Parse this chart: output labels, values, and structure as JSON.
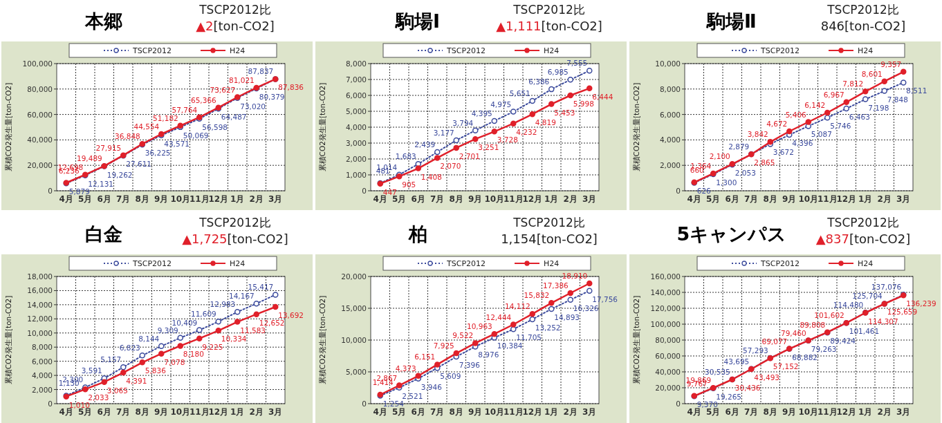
{
  "chart_data": [
    {
      "type": "line",
      "title": "本郷",
      "annotations": [
        "TSCP2012比",
        "▲2[ton-CO2]"
      ],
      "ylabel": "累積CO2発生量[ton-CO2]",
      "categories": [
        "4月",
        "5月",
        "6月",
        "7月",
        "8月",
        "9月",
        "10月",
        "11月",
        "12月",
        "1月",
        "2月",
        "3月"
      ],
      "ylim": [
        0,
        100000
      ],
      "yticks": [
        {
          "value": 0,
          "label": "0"
        },
        {
          "value": 20000,
          "label": "20,000"
        },
        {
          "value": 40000,
          "label": "40,000"
        },
        {
          "value": 60000,
          "label": "60,000"
        },
        {
          "value": 80000,
          "label": "80,000"
        },
        {
          "value": 100000,
          "label": "100,000"
        }
      ],
      "grid": true,
      "legend": "top",
      "series": [
        {
          "name": "TSCP2012",
          "color": "#3b4a9c",
          "marker": "circle",
          "line_style": "dotted",
          "values": [
            5879,
            12131,
            19262,
            27611,
            36225,
            43571,
            50069,
            56598,
            64487,
            73020,
            80379,
            87837
          ],
          "value_labels": [
            "5,879",
            "12,131",
            "19,262",
            "27,611",
            "36,225",
            "43,571",
            "50,069",
            "56,598",
            "64,487",
            "73,020",
            "80,379",
            "87,837"
          ]
        },
        {
          "name": "H24",
          "color": "#e0202a",
          "marker": "circle",
          "line_style": "solid",
          "values": [
            6236,
            12698,
            19489,
            27915,
            36848,
            44554,
            51182,
            57764,
            65366,
            73627,
            81021,
            87836
          ],
          "value_labels": [
            "6,236",
            "12,698",
            "19,489",
            "27,915",
            "36,848",
            "44,554",
            "51,182",
            "57,764",
            "65,366",
            "73,627",
            "81,021",
            "87,836"
          ]
        }
      ]
    },
    {
      "type": "line",
      "title": "駒場Ⅰ",
      "annotations": [
        "TSCP2012比",
        "▲1,111[ton-CO2]"
      ],
      "ylabel": "累積CO2発生量[ton-CO2]",
      "categories": [
        "4月",
        "5月",
        "6月",
        "7月",
        "8月",
        "9月",
        "10月",
        "11月",
        "12月",
        "1月",
        "2月",
        "3月"
      ],
      "ylim": [
        0,
        8000
      ],
      "yticks": [
        {
          "value": 0,
          "label": "0"
        },
        {
          "value": 1000,
          "label": "1,000"
        },
        {
          "value": 2000,
          "label": "2,000"
        },
        {
          "value": 3000,
          "label": "3,000"
        },
        {
          "value": 4000,
          "label": "4,000"
        },
        {
          "value": 5000,
          "label": "5,000"
        },
        {
          "value": 6000,
          "label": "6,000"
        },
        {
          "value": 7000,
          "label": "7,000"
        },
        {
          "value": 8000,
          "label": "8,000"
        }
      ],
      "grid": true,
      "legend": "top",
      "series": [
        {
          "name": "TSCP2012",
          "color": "#3b4a9c",
          "marker": "circle",
          "line_style": "dotted",
          "values": [
            481,
            1014,
            1683,
            2439,
            3177,
            3794,
            4395,
            4975,
            5651,
            6386,
            6985,
            7555
          ],
          "value_labels": [
            "481",
            "1,014",
            "1,683",
            "2,439",
            "3,177",
            "3,794",
            "4,395",
            "4,975",
            "5,651",
            "6,386",
            "6,985",
            "7,555"
          ]
        },
        {
          "name": "H24",
          "color": "#e0202a",
          "marker": "circle",
          "line_style": "solid",
          "values": [
            447,
            905,
            1408,
            2070,
            2701,
            3251,
            3728,
            4232,
            4819,
            5453,
            5998,
            6444
          ],
          "value_labels": [
            "447",
            "905",
            "1,408",
            "2,070",
            "2,701",
            "3,251",
            "3,728",
            "4,232",
            "4,819",
            "5,453",
            "5,998",
            "6,444"
          ]
        }
      ]
    },
    {
      "type": "line",
      "title": "駒場Ⅱ",
      "annotations": [
        "TSCP2012比",
        "846[ton-CO2]"
      ],
      "ylabel": "累積CO2発生量[ton-CO2]",
      "categories": [
        "4月",
        "5月",
        "6月",
        "7月",
        "8月",
        "9月",
        "10月",
        "11月",
        "12月",
        "1月",
        "2月",
        "3月"
      ],
      "ylim": [
        0,
        10000
      ],
      "yticks": [
        {
          "value": 0,
          "label": "0"
        },
        {
          "value": 2000,
          "label": "2,000"
        },
        {
          "value": 4000,
          "label": "4,000"
        },
        {
          "value": 6000,
          "label": "6,000"
        },
        {
          "value": 8000,
          "label": "8,000"
        },
        {
          "value": 10000,
          "label": "10,000"
        }
      ],
      "grid": true,
      "legend": "top",
      "series": [
        {
          "name": "TSCP2012",
          "color": "#3b4a9c",
          "marker": "circle",
          "line_style": "dotted",
          "values": [
            626,
            1300,
            2053,
            2879,
            3672,
            4396,
            5087,
            5746,
            6463,
            7198,
            7848,
            8511
          ],
          "value_labels": [
            "626",
            "1,300",
            "2,053",
            "2,879",
            "3,672",
            "4,396",
            "5,087",
            "5,746",
            "6,463",
            "7,198",
            "7,848",
            "8,511"
          ]
        },
        {
          "name": "H24",
          "color": "#e0202a",
          "marker": "circle",
          "line_style": "solid",
          "values": [
            660,
            1364,
            2100,
            2865,
            3842,
            4672,
            5406,
            6142,
            6967,
            7812,
            8601,
            9357
          ],
          "value_labels": [
            "660",
            "1,364",
            "2,100",
            "2,865",
            "3,842",
            "4,672",
            "5,406",
            "6,142",
            "6,967",
            "7,812",
            "8,601",
            "9,357"
          ]
        }
      ]
    },
    {
      "type": "line",
      "title": "白金",
      "annotations": [
        "TSCP2012比",
        "▲1,725[ton-CO2]"
      ],
      "ylabel": "累積CO2発生量[ton-CO2]",
      "categories": [
        "4月",
        "5月",
        "6月",
        "7月",
        "8月",
        "9月",
        "10月",
        "11月",
        "12月",
        "1月",
        "2月",
        "3月"
      ],
      "ylim": [
        0,
        18000
      ],
      "yticks": [
        {
          "value": 0,
          "label": "0"
        },
        {
          "value": 2000,
          "label": "2,000"
        },
        {
          "value": 4000,
          "label": "4,000"
        },
        {
          "value": 6000,
          "label": "6,000"
        },
        {
          "value": 8000,
          "label": "8,000"
        },
        {
          "value": 10000,
          "label": "10,000"
        },
        {
          "value": 12000,
          "label": "12,000"
        },
        {
          "value": 14000,
          "label": "14,000"
        },
        {
          "value": 16000,
          "label": "16,000"
        },
        {
          "value": 18000,
          "label": "18,000"
        }
      ],
      "grid": true,
      "legend": "top",
      "series": [
        {
          "name": "TSCP2012",
          "color": "#3b4a9c",
          "marker": "circle",
          "line_style": "dotted",
          "values": [
            1130,
            2300,
            3591,
            5157,
            6823,
            8144,
            9309,
            10409,
            11609,
            12983,
            14167,
            15417
          ],
          "value_labels": [
            "1,130",
            "2,300",
            "3,591",
            "5,157",
            "6,823",
            "8,144",
            "9,309",
            "10,409",
            "11,609",
            "12,983",
            "14,167",
            "15,417"
          ]
        },
        {
          "name": "H24",
          "color": "#e0202a",
          "marker": "circle",
          "line_style": "solid",
          "values": [
            1010,
            2033,
            3065,
            4391,
            5836,
            7078,
            8180,
            9225,
            10334,
            11583,
            12652,
            13692
          ],
          "value_labels": [
            "1,010",
            "2,033",
            "3,065",
            "4,391",
            "5,836",
            "7,078",
            "8,180",
            "9,225",
            "10,334",
            "11,583",
            "12,652",
            "13,692"
          ]
        }
      ]
    },
    {
      "type": "line",
      "title": "柏",
      "annotations": [
        "TSCP2012比",
        "1,154[ton-CO2]"
      ],
      "ylabel": "累積CO2発生量[ton-CO2]",
      "categories": [
        "4月",
        "5月",
        "6月",
        "7月",
        "8月",
        "9月",
        "10月",
        "11月",
        "12月",
        "1月",
        "2月",
        "3月"
      ],
      "ylim": [
        0,
        20000
      ],
      "yticks": [
        {
          "value": 0,
          "label": "0"
        },
        {
          "value": 5000,
          "label": "5,000"
        },
        {
          "value": 10000,
          "label": "10,000"
        },
        {
          "value": 15000,
          "label": "15,000"
        },
        {
          "value": 20000,
          "label": "20,000"
        }
      ],
      "grid": true,
      "legend": "top",
      "series": [
        {
          "name": "TSCP2012",
          "color": "#3b4a9c",
          "marker": "circle",
          "line_style": "dotted",
          "values": [
            1254,
            2521,
            3946,
            5609,
            7396,
            8976,
            10384,
            11705,
            13252,
            14893,
            16326,
            17756
          ],
          "value_labels": [
            "1,254",
            "2,521",
            "3,946",
            "5,609",
            "7,396",
            "8,976",
            "10,384",
            "11,705",
            "13,252",
            "14,893",
            "16,326",
            "17,756"
          ]
        },
        {
          "name": "H24",
          "color": "#e0202a",
          "marker": "circle",
          "line_style": "solid",
          "values": [
            1414,
            2867,
            4373,
            6151,
            7925,
            9522,
            10963,
            12444,
            14112,
            15832,
            17386,
            18910
          ],
          "value_labels": [
            "1,414",
            "2,867",
            "4,373",
            "6,151",
            "7,925",
            "9,522",
            "10,963",
            "12,444",
            "14,112",
            "15,832",
            "17,386",
            "18,910"
          ]
        }
      ]
    },
    {
      "type": "line",
      "title": "5キャンパス",
      "annotations": [
        "TSCP2012比",
        "▲837[ton-CO2]"
      ],
      "ylabel": "累積CO2発生量[ton-CO2]",
      "categories": [
        "4月",
        "5月",
        "6月",
        "7月",
        "8月",
        "9月",
        "10月",
        "11月",
        "12月",
        "1月",
        "2月",
        "3月"
      ],
      "ylim": [
        0,
        160000
      ],
      "yticks": [
        {
          "value": 0,
          "label": "0"
        },
        {
          "value": 20000,
          "label": "20,000"
        },
        {
          "value": 40000,
          "label": "40,000"
        },
        {
          "value": 60000,
          "label": "60,000"
        },
        {
          "value": 80000,
          "label": "80,000"
        },
        {
          "value": 100000,
          "label": "100,000"
        },
        {
          "value": 120000,
          "label": "120,000"
        },
        {
          "value": 140000,
          "label": "140,000"
        },
        {
          "value": 160000,
          "label": "160,000"
        }
      ],
      "grid": true,
      "legend": "top",
      "series": [
        {
          "name": "TSCP2012",
          "color": "#3b4a9c",
          "marker": "circle",
          "line_style": "dotted",
          "values": [
            9370,
            19265,
            30535,
            43695,
            57293,
            68882,
            79263,
            89424,
            101461,
            114480,
            125704,
            137076
          ],
          "value_labels": [
            "9,370",
            "19,265",
            "30,535",
            "43,695",
            "57,293",
            "68,882",
            "79,263",
            "89,424",
            "101,461",
            "114,480",
            "125,704",
            "137,076"
          ]
        },
        {
          "name": "H24",
          "color": "#e0202a",
          "marker": "circle",
          "line_style": "solid",
          "values": [
            9767,
            19869,
            30436,
            43493,
            57152,
            69077,
            79460,
            89808,
            101602,
            114307,
            125659,
            136239
          ],
          "value_labels": [
            "9,767",
            "19,869",
            "30,436",
            "43,493",
            "57,152",
            "69,077",
            "79,460",
            "89,808",
            "101,602",
            "114,307",
            "125,659",
            "136,239"
          ]
        }
      ]
    }
  ]
}
